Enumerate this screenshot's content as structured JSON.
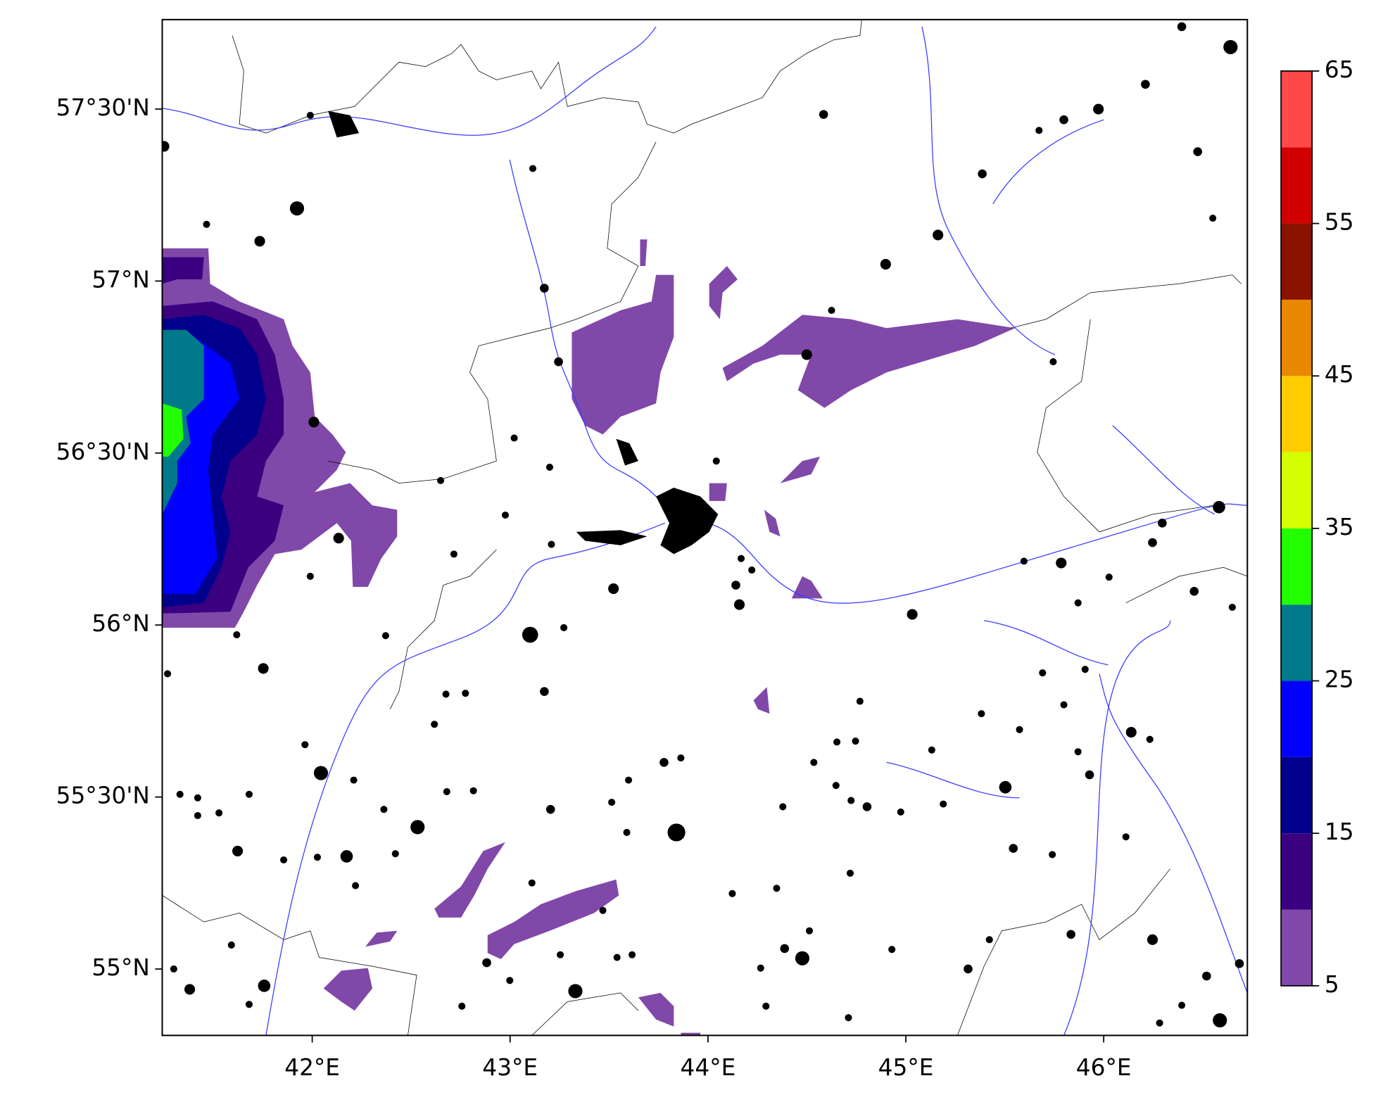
{
  "chart_data": {
    "type": "map",
    "xlim": [
      41.242,
      46.726
    ],
    "ylim": [
      54.807,
      57.76
    ],
    "xticks": [
      {
        "value": 42,
        "label": "42°E"
      },
      {
        "value": 43,
        "label": "43°E"
      },
      {
        "value": 44,
        "label": "44°E"
      },
      {
        "value": 45,
        "label": "45°E"
      },
      {
        "value": 46,
        "label": "46°E"
      }
    ],
    "yticks": [
      {
        "value": 55,
        "label": "55°N"
      },
      {
        "value": 55.5,
        "label": "55°30'N"
      },
      {
        "value": 56,
        "label": "56°N"
      },
      {
        "value": 56.5,
        "label": "56°30'N"
      },
      {
        "value": 57,
        "label": "57°N"
      },
      {
        "value": 57.5,
        "label": "57°30'N"
      }
    ],
    "colorbar": {
      "levels": [
        5,
        10,
        15,
        20,
        25,
        30,
        35,
        40,
        45,
        50,
        55,
        60,
        65
      ],
      "colors": [
        "#8048a8",
        "#3a0080",
        "#00008c",
        "#0000ff",
        "#007a8a",
        "#22ff00",
        "#d4ff00",
        "#ffcc00",
        "#e88800",
        "#8a1200",
        "#d00000",
        "#ff4848"
      ],
      "ticks": [
        5,
        15,
        25,
        35,
        45,
        55,
        65
      ]
    }
  }
}
